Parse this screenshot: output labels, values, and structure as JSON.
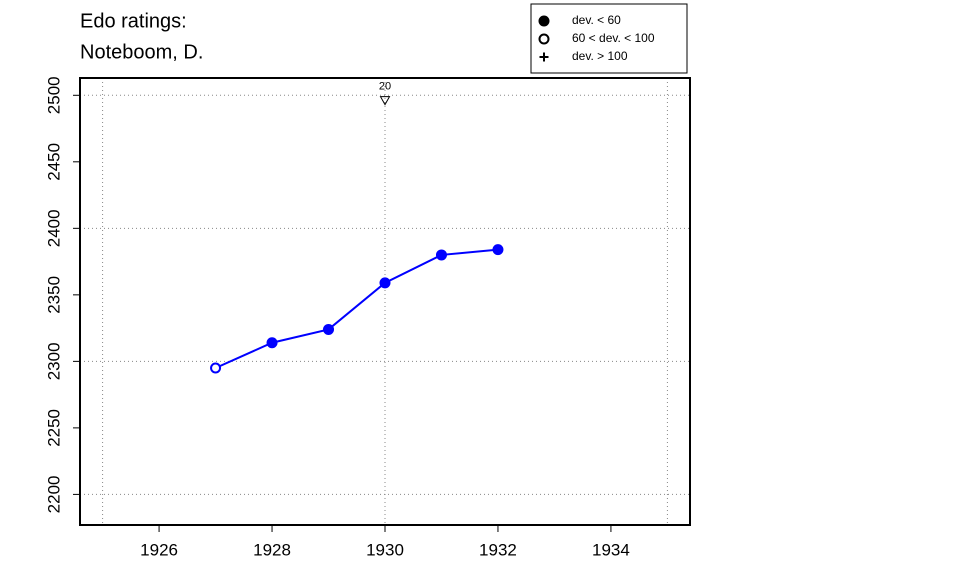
{
  "chart_data": {
    "type": "line",
    "title": [
      "Edo ratings:",
      "Noteboom, D."
    ],
    "x": [
      1927,
      1928,
      1929,
      1930,
      1931,
      1932
    ],
    "series": [
      {
        "color": "#0000ff",
        "values": [
          2295,
          2314,
          2324,
          2359,
          2380,
          2384
        ],
        "markers": [
          "open",
          "filled",
          "filled",
          "filled",
          "filled",
          "filled"
        ]
      }
    ],
    "xlim": [
      1924.6,
      1935.4
    ],
    "ylim": [
      2177,
      2513
    ],
    "xticks": [
      1926,
      1928,
      1930,
      1932,
      1934
    ],
    "yticks": [
      2200,
      2250,
      2300,
      2350,
      2400,
      2450,
      2500
    ],
    "xgrid": [
      1925,
      1930,
      1935
    ],
    "ygrid": [
      2200,
      2300,
      2400,
      2500
    ],
    "annotation": {
      "x": 1930,
      "y": 2496,
      "label": "20"
    },
    "legend": [
      {
        "label": "dev. < 60",
        "symbol": "filled"
      },
      {
        "label": "60 < dev. < 100",
        "symbol": "open"
      },
      {
        "label": "dev. > 100",
        "symbol": "plus"
      }
    ]
  }
}
